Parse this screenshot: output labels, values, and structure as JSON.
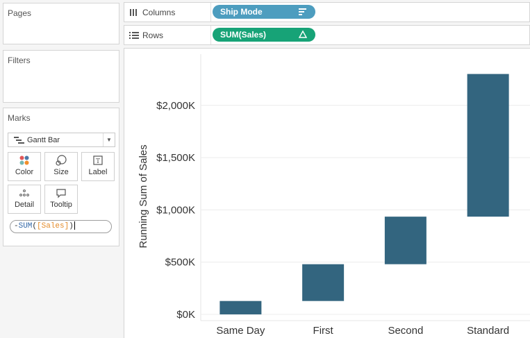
{
  "panels": {
    "pages": {
      "title": "Pages"
    },
    "filters": {
      "title": "Filters"
    },
    "marks": {
      "title": "Marks",
      "mark_type": "Gantt Bar",
      "buttons": [
        {
          "label": "Color",
          "icon": "color-dots-icon"
        },
        {
          "label": "Size",
          "icon": "size-icon"
        },
        {
          "label": "Label",
          "icon": "label-icon"
        },
        {
          "label": "Detail",
          "icon": "detail-dots-icon"
        },
        {
          "label": "Tooltip",
          "icon": "tooltip-icon"
        }
      ],
      "calc": {
        "prefix": "-",
        "fn": "SUM",
        "open": "(",
        "field": "[Sales]",
        "close": ")"
      }
    }
  },
  "shelves": {
    "columns": {
      "label": "Columns",
      "pill": "Ship Mode",
      "pill_icon": "sort-descending-icon"
    },
    "rows": {
      "label": "Rows",
      "pill": "SUM(Sales)",
      "pill_icon": "delta-icon"
    }
  },
  "colors": {
    "bar": "#33657f",
    "columns_pill": "#4d9dbf",
    "rows_pill": "#17a377",
    "gridline": "#ececec"
  },
  "chart_data": {
    "type": "gantt",
    "ylabel": "Running Sum of Sales",
    "xlabel": "",
    "categories": [
      "Same Day",
      "First",
      "Second",
      "Standard"
    ],
    "bars": [
      {
        "category": "Same Day",
        "start": 0,
        "end": 128000
      },
      {
        "category": "First",
        "start": 128000,
        "end": 480000
      },
      {
        "category": "Second",
        "start": 480000,
        "end": 935000
      },
      {
        "category": "Standard",
        "start": 935000,
        "end": 2300000
      }
    ],
    "y_ticks": [
      {
        "value": 0,
        "label": "$0K"
      },
      {
        "value": 500000,
        "label": "$500K"
      },
      {
        "value": 1000000,
        "label": "$1,000K"
      },
      {
        "value": 1500000,
        "label": "$1,500K"
      },
      {
        "value": 2000000,
        "label": "$2,000K"
      }
    ],
    "ylim": [
      -60000,
      2450000
    ],
    "grid": true
  }
}
